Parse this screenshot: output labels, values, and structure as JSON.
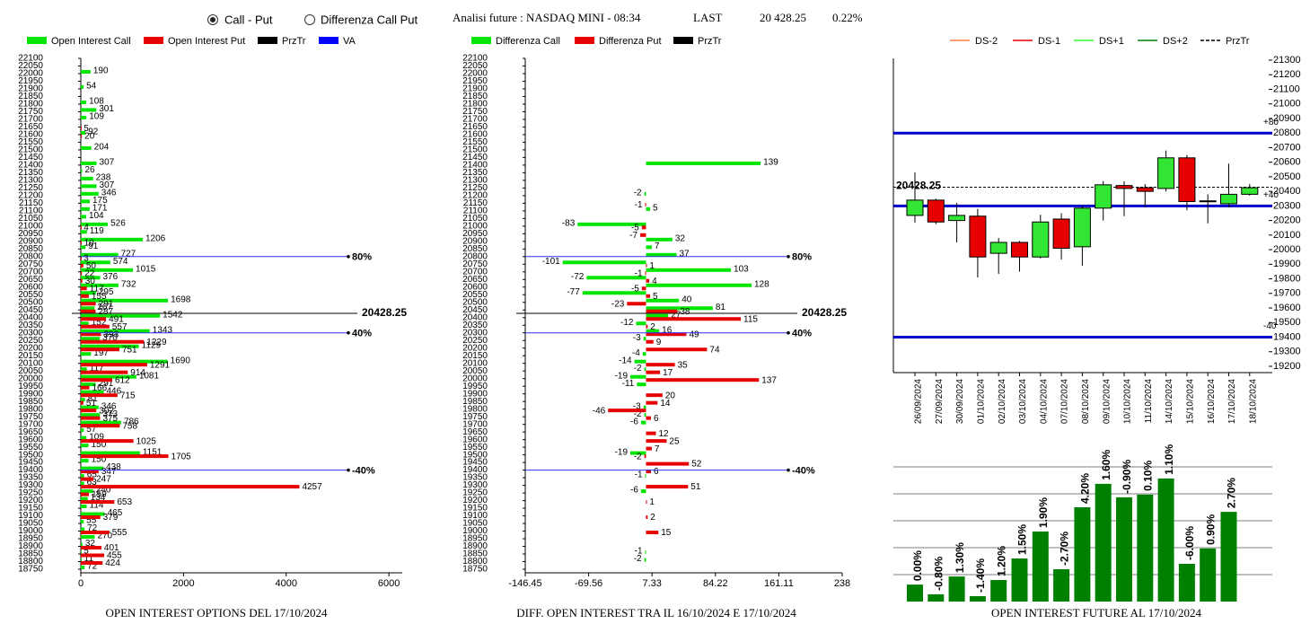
{
  "header": {
    "options": [
      "Call - Put",
      "Differenza Call Put"
    ],
    "selected": 0,
    "title": "Analisi future : NASDAQ MINI - 08:34",
    "last_label": "LAST",
    "last": "20 428.25",
    "change": "0.22%"
  },
  "chart_data": [
    {
      "type": "hbar",
      "caption": "OPEN INTEREST OPTIONS DEL 17/10/2024",
      "y": [
        18750,
        18800,
        18850,
        18900,
        18950,
        19000,
        19050,
        19100,
        19150,
        19200,
        19250,
        19300,
        19350,
        19400,
        19450,
        19500,
        19550,
        19600,
        19650,
        19700,
        19750,
        19800,
        19850,
        19900,
        19950,
        20000,
        20050,
        20100,
        20150,
        20200,
        20250,
        20300,
        20350,
        20400,
        20450,
        20500,
        20550,
        20600,
        20650,
        20700,
        20750,
        20800,
        20850,
        20900,
        20950,
        21000,
        21050,
        21100,
        21150,
        21200,
        21250,
        21300,
        21350,
        21400,
        21450,
        21500,
        21550,
        21600,
        21650,
        21700,
        21750,
        21800,
        21850,
        21900,
        21950,
        22000,
        22050
      ],
      "series": [
        {
          "name": "Open Interest Call",
          "color": "#00e600",
          "values": [
            72,
            11,
            5,
            32,
            270,
            72,
            55,
            465,
            114,
            134,
            240,
            63,
            65,
            438,
            150,
            1151,
            150,
            109,
            57,
            786,
            373,
            346,
            81,
            446,
            291,
            1081,
            117,
            1690,
            197,
            1129,
            370,
            1343,
            152,
            1542,
            267,
            1698,
            295,
            732,
            376,
            1015,
            574,
            727,
            91,
            1206,
            119,
            526,
            104,
            171,
            175,
            346,
            307,
            238,
            26,
            307,
            null,
            204,
            null,
            92,
            null,
            109,
            301,
            108,
            null,
            54,
            null,
            190,
            null
          ]
        },
        {
          "name": "Open Interest Put",
          "color": "#e60000",
          "values": [
            null,
            424,
            455,
            401,
            null,
            555,
            null,
            379,
            null,
            653,
            159,
            4257,
            247,
            347,
            null,
            1705,
            null,
            1025,
            null,
            758,
            375,
            302,
            51,
            715,
            166,
            612,
            914,
            1291,
            null,
            751,
            1229,
            393,
            557,
            491,
            287,
            291,
            155,
            117,
            30,
            22,
            50,
            3,
            null,
            10,
            null,
            4,
            null,
            null,
            null,
            null,
            null,
            null,
            null,
            null,
            null,
            null,
            null,
            20,
            5,
            null,
            null,
            null,
            null,
            null,
            null,
            null,
            null
          ]
        }
      ],
      "legend_extra": [
        {
          "name": "PrzTr",
          "color": "#000000"
        },
        {
          "name": "VA",
          "color": "#0000ff"
        }
      ],
      "xlim": [
        0,
        6260
      ],
      "xticks": [
        0,
        2000,
        4000,
        6000
      ],
      "ylim": [
        18750,
        22100
      ],
      "yticks": [
        18750,
        18800,
        18850,
        18900,
        18950,
        19000,
        19050,
        19100,
        19150,
        19200,
        19250,
        19300,
        19350,
        19400,
        19450,
        19500,
        19550,
        19600,
        19650,
        19700,
        19750,
        19800,
        19850,
        19900,
        19950,
        20000,
        20050,
        20100,
        20150,
        20200,
        20250,
        20300,
        20350,
        20400,
        20450,
        20500,
        20550,
        20600,
        20650,
        20700,
        20750,
        20800,
        20850,
        20900,
        20950,
        21000,
        21050,
        21100,
        21150,
        21200,
        21250,
        21300,
        21350,
        21400,
        21450,
        21500,
        21550,
        21600,
        21650,
        21700,
        21750,
        21800,
        21850,
        21900,
        21950,
        22000,
        22050,
        22100
      ],
      "price_line": 20428.25,
      "va_lines": [
        {
          "value": 20800,
          "label": "80%"
        },
        {
          "value": 20300,
          "label": "40%"
        },
        {
          "value": 19400,
          "label": "-40%"
        }
      ]
    },
    {
      "type": "hbar",
      "caption": "DIFF. OPEN INTEREST TRA IL 16/10/2024 E 17/10/2024",
      "y": [
        18750,
        18800,
        18850,
        18900,
        18950,
        19000,
        19050,
        19100,
        19150,
        19200,
        19250,
        19300,
        19350,
        19400,
        19450,
        19500,
        19550,
        19600,
        19650,
        19700,
        19750,
        19800,
        19850,
        19900,
        19950,
        20000,
        20050,
        20100,
        20150,
        20200,
        20250,
        20300,
        20350,
        20400,
        20450,
        20500,
        20550,
        20600,
        20650,
        20700,
        20750,
        20800,
        20850,
        20900,
        20950,
        21000,
        21050,
        21100,
        21150,
        21200,
        21250,
        21300,
        21350,
        21400,
        21450,
        21500,
        21550,
        21600,
        21650,
        21700,
        21750,
        21800,
        21850,
        21900,
        21950,
        22000,
        22050
      ],
      "series": [
        {
          "name": "Differenza Call",
          "color": "#00e600",
          "values": [
            null,
            -2,
            -1,
            null,
            null,
            null,
            null,
            null,
            null,
            null,
            -6,
            null,
            -1,
            null,
            null,
            -19,
            null,
            null,
            null,
            -6,
            -2,
            -3,
            null,
            null,
            -11,
            -19,
            -2,
            -14,
            -4,
            null,
            -3,
            16,
            -12,
            27,
            81,
            40,
            -77,
            128,
            -72,
            103,
            -101,
            37,
            7,
            32,
            null,
            -83,
            null,
            5,
            null,
            -2,
            null,
            null,
            null,
            139,
            null,
            null,
            null,
            null,
            null,
            null,
            null,
            null,
            null,
            null,
            null,
            null,
            null
          ]
        },
        {
          "name": "Differenza Put",
          "color": "#e60000",
          "values": [
            null,
            null,
            null,
            null,
            null,
            15,
            null,
            2,
            null,
            1,
            null,
            51,
            null,
            6,
            52,
            -2,
            7,
            25,
            12,
            null,
            6,
            -46,
            14,
            20,
            null,
            137,
            17,
            35,
            null,
            74,
            9,
            49,
            2,
            115,
            38,
            -23,
            5,
            -5,
            4,
            -1,
            1,
            null,
            null,
            null,
            -7,
            -5,
            null,
            null,
            -1,
            null,
            null,
            null,
            null,
            null,
            null,
            null,
            null,
            null,
            null,
            null,
            null,
            null,
            null,
            null,
            null,
            null,
            null
          ]
        }
      ],
      "legend_extra": [
        {
          "name": "PrzTr",
          "color": "#000000"
        }
      ],
      "xlim": [
        -146.45,
        238
      ],
      "xticks": [
        -146.45,
        -69.56,
        7.33,
        84.22,
        161.11,
        238
      ],
      "ylim": [
        18750,
        22100
      ],
      "yticks": [
        18750,
        18800,
        18850,
        18900,
        18950,
        19000,
        19050,
        19100,
        19150,
        19200,
        19250,
        19300,
        19350,
        19400,
        19450,
        19500,
        19550,
        19600,
        19650,
        19700,
        19750,
        19800,
        19850,
        19900,
        19950,
        20000,
        20050,
        20100,
        20150,
        20200,
        20250,
        20300,
        20350,
        20400,
        20450,
        20500,
        20550,
        20600,
        20650,
        20700,
        20750,
        20800,
        20850,
        20900,
        20950,
        21000,
        21050,
        21100,
        21150,
        21200,
        21250,
        21300,
        21350,
        21400,
        21450,
        21500,
        21550,
        21600,
        21650,
        21700,
        21750,
        21800,
        21850,
        21900,
        21950,
        22000,
        22050,
        22100
      ],
      "price_line": 20428.25,
      "va_lines": [
        {
          "value": 20800,
          "label": "80%"
        },
        {
          "value": 20300,
          "label": "40%"
        },
        {
          "value": 19400,
          "label": "-40%"
        }
      ]
    },
    {
      "type": "candlestick",
      "legend": [
        {
          "name": "DS-2",
          "color": "#ff8040"
        },
        {
          "name": "DS-1",
          "color": "#e60000"
        },
        {
          "name": "DS+1",
          "color": "#33ff33"
        },
        {
          "name": "DS+2",
          "color": "#008000"
        },
        {
          "name": "PrzTr",
          "color": "#000000",
          "dash": true
        }
      ],
      "categories": [
        "26/09/2024",
        "27/09/2024",
        "30/09/2024",
        "01/10/2024",
        "02/10/2024",
        "03/10/2024",
        "04/10/2024",
        "07/10/2024",
        "08/10/2024",
        "09/10/2024",
        "10/10/2024",
        "11/10/2024",
        "14/10/2024",
        "15/10/2024",
        "16/10/2024",
        "17/10/2024",
        "18/10/2024"
      ],
      "open": [
        20235,
        20340,
        20200,
        20230,
        19975,
        20050,
        19950,
        20210,
        20020,
        20285,
        20440,
        20425,
        20420,
        20630,
        20335,
        20315,
        20380
      ],
      "high": [
        20530,
        20350,
        20320,
        20280,
        20080,
        20060,
        20240,
        20250,
        20300,
        20470,
        20470,
        20450,
        20680,
        20650,
        20380,
        20590,
        20450
      ],
      "low": [
        20185,
        20175,
        20050,
        19810,
        19834,
        19850,
        19940,
        19933,
        19890,
        20200,
        20230,
        20290,
        20400,
        20270,
        20180,
        20290,
        20370
      ],
      "close": [
        20340,
        20190,
        20235,
        19950,
        20050,
        19950,
        20190,
        20010,
        20285,
        20445,
        20420,
        20400,
        20630,
        20330,
        20330,
        20380,
        20425
      ],
      "up_color": "#33e633",
      "down_color": "#e60000",
      "ylim": [
        19200,
        21300
      ],
      "yticks": [
        19200,
        19300,
        19400,
        19500,
        19600,
        19700,
        19800,
        19900,
        20000,
        20100,
        20200,
        20300,
        20400,
        20500,
        20600,
        20700,
        20800,
        20900,
        21000,
        21100,
        21200,
        21300
      ],
      "price_line": 20428.25,
      "levels": [
        {
          "value": 20800,
          "label": "+80"
        },
        {
          "value": 20300,
          "label": "+40"
        },
        {
          "value": 19400,
          "label": "-40"
        }
      ]
    },
    {
      "type": "bar",
      "caption": "OPEN INTEREST FUTURE AL 17/10/2024",
      "color": "#008000",
      "values": [
        0.63,
        0.27,
        0.93,
        0.2,
        0.8,
        1.6,
        2.6,
        1.2,
        3.5,
        4.37,
        3.87,
        3.97,
        4.57,
        1.4,
        1.97,
        3.33
      ],
      "labels": [
        "0.00%",
        "-0.80%",
        "1.30%",
        "-1.40%",
        "1.20%",
        "1.50%",
        "1.90%",
        "-2.70%",
        "4.20%",
        "1.60%",
        "-0.90%",
        "0.10%",
        "1.10%",
        "-6.00%",
        "0.90%",
        "2.70%"
      ],
      "ylim": [
        0,
        5
      ],
      "gridlines": [
        1,
        2,
        3,
        4,
        5
      ]
    }
  ]
}
